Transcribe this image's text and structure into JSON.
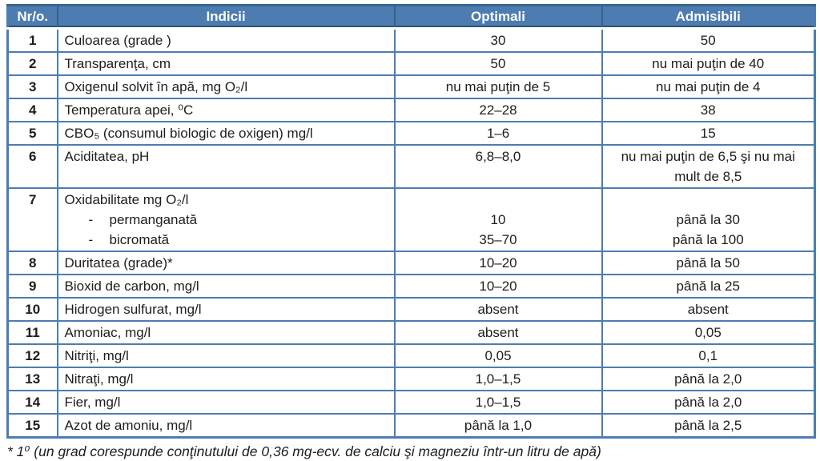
{
  "table": {
    "headers": [
      "Nr/o.",
      "Indicii",
      "Optimali",
      "Admisibili"
    ],
    "rows": [
      {
        "nr": "1",
        "indicii": [
          "Culoarea (grade )"
        ],
        "optimali": [
          "30"
        ],
        "admisibili": [
          "50"
        ]
      },
      {
        "nr": "2",
        "indicii": [
          "Transparenţa, cm"
        ],
        "optimali": [
          "50"
        ],
        "admisibili": [
          "nu mai puţin de 40"
        ]
      },
      {
        "nr": "3",
        "indicii": [
          "Oxigenul solvit în apă, mg O₂/l"
        ],
        "optimali": [
          "nu mai puţin de 5"
        ],
        "admisibili": [
          "nu mai puţin de 4"
        ]
      },
      {
        "nr": "4",
        "indicii": [
          "Temperatura apei, ⁰C"
        ],
        "optimali": [
          "22–28"
        ],
        "admisibili": [
          "38"
        ]
      },
      {
        "nr": "5",
        "indicii": [
          "CBO₅ (consumul biologic de oxigen) mg/l"
        ],
        "optimali": [
          "1–6"
        ],
        "admisibili": [
          "15"
        ]
      },
      {
        "nr": "6",
        "indicii": [
          "Aciditatea, pH",
          ""
        ],
        "optimali": [
          "6,8–8,0"
        ],
        "admisibili": [
          "nu mai puţin de 6,5 şi nu mai mult de 8,5"
        ]
      },
      {
        "nr": "7",
        "indicii": [
          "Oxidabilitate mg O₂/l",
          "- permanganată",
          "- bicromată"
        ],
        "optimali": [
          "",
          "10",
          "35–70"
        ],
        "admisibili": [
          "",
          "până la 30",
          "până la 100"
        ]
      },
      {
        "nr": "8",
        "indicii": [
          "Duritatea (grade)*"
        ],
        "optimali": [
          "10–20"
        ],
        "admisibili": [
          "până la 50"
        ]
      },
      {
        "nr": "9",
        "indicii": [
          "Bioxid de carbon, mg/l"
        ],
        "optimali": [
          "10–20"
        ],
        "admisibili": [
          "până la 25"
        ]
      },
      {
        "nr": "10",
        "indicii": [
          "Hidrogen sulfurat, mg/l"
        ],
        "optimali": [
          "absent"
        ],
        "admisibili": [
          "absent"
        ]
      },
      {
        "nr": "11",
        "indicii": [
          "Amoniac, mg/l"
        ],
        "optimali": [
          "absent"
        ],
        "admisibili": [
          "0,05"
        ]
      },
      {
        "nr": "12",
        "indicii": [
          "Nitriţi, mg/l"
        ],
        "optimali": [
          "0,05"
        ],
        "admisibili": [
          "0,1"
        ]
      },
      {
        "nr": "13",
        "indicii": [
          "Nitraţi, mg/l"
        ],
        "optimali": [
          "1,0–1,5"
        ],
        "admisibili": [
          "până la 2,0"
        ]
      },
      {
        "nr": "14",
        "indicii": [
          "Fier, mg/l"
        ],
        "optimali": [
          "1,0–1,5"
        ],
        "admisibili": [
          "până la 2,0"
        ]
      },
      {
        "nr": "15",
        "indicii": [
          "Azot de amoniu, mg/l"
        ],
        "optimali": [
          "până la 1,0"
        ],
        "admisibili": [
          "până la 2,5"
        ]
      }
    ]
  },
  "footnote": "* 1⁰ (un grad corespunde conţinutului de 0,36 mg-ecv. de calciu şi magneziu într-un litru de apă)",
  "colors": {
    "header_bg": "#4d7cb0",
    "header_text": "#ffffff",
    "grid_border": "#4b7db2",
    "body_text": "#1d1d1b"
  }
}
